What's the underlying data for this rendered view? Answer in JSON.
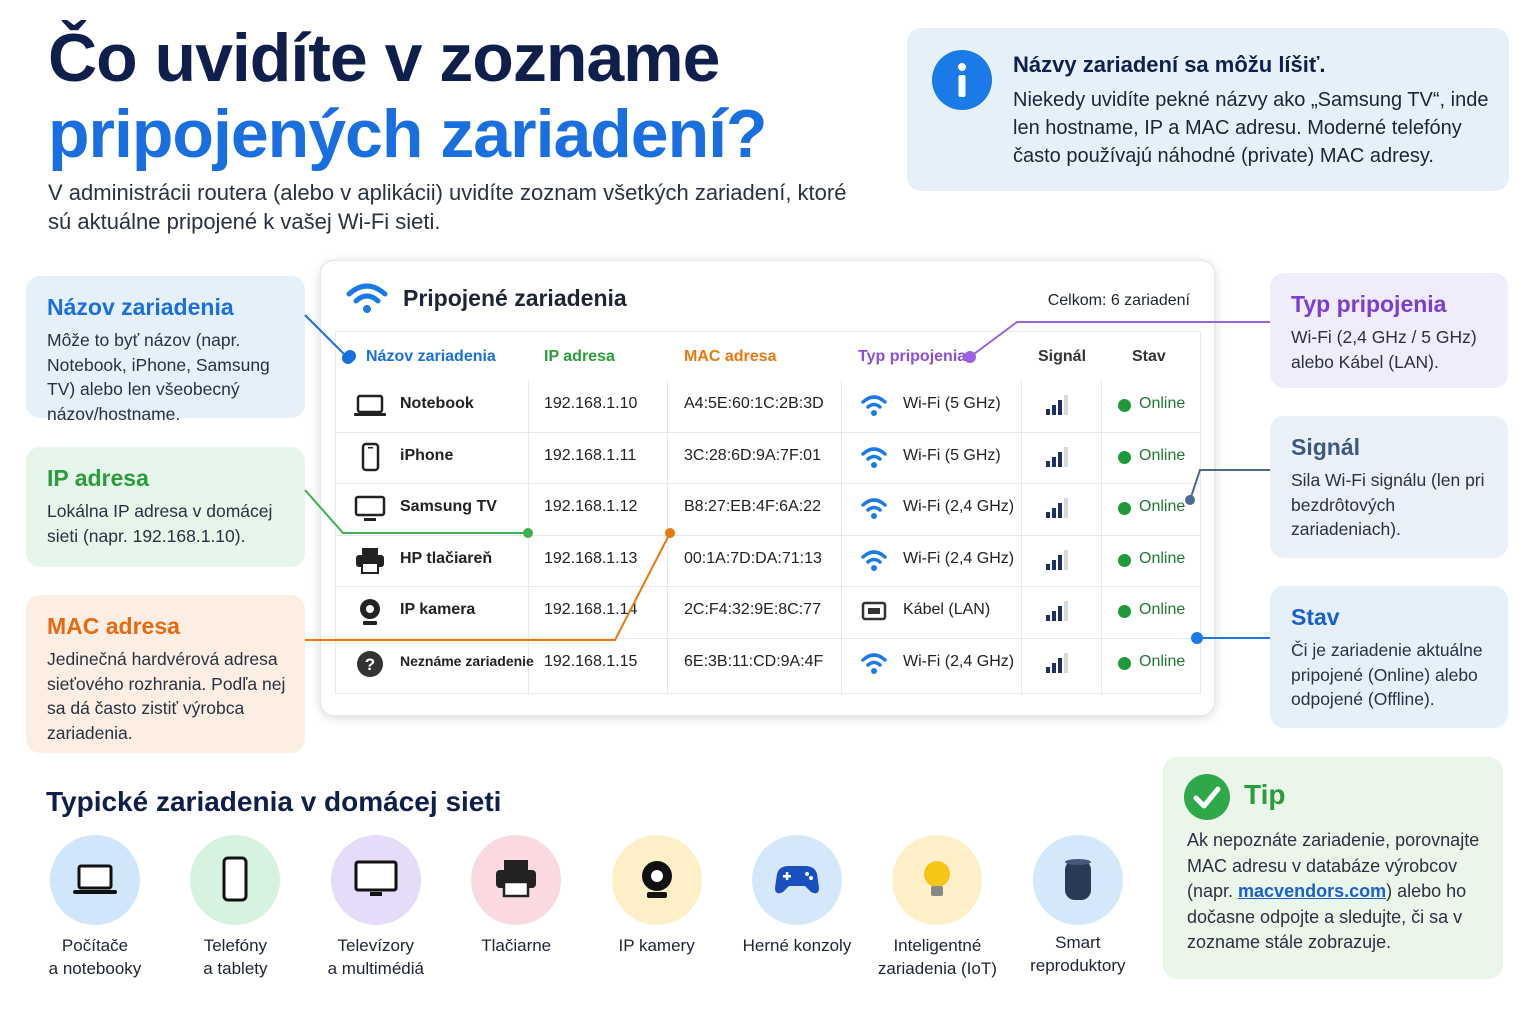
{
  "header": {
    "title_line1": "Čo uvidíte v zozname",
    "title_line2": "pripojených zariadení?",
    "subtitle": "V administrácii routera (alebo v aplikácii) uvidíte zoznam všetkých zariadení, ktoré sú aktuálne pripojené k vašej Wi-Fi sieti."
  },
  "info": {
    "title": "Názvy zariadení sa môžu líšiť.",
    "text": "Niekedy uvidíte pekné názvy ako „Samsung TV“, inde len hostname, IP a MAC adresu. Moderné telefóny často používajú náhodné (private) MAC adresy."
  },
  "table": {
    "title": "Pripojené zariadenia",
    "total": "Celkom: 6 zariadení",
    "columns": [
      "Názov zariadenia",
      "IP adresa",
      "MAC adresa",
      "Typ pripojenia",
      "Signál",
      "Stav"
    ],
    "rows": [
      [
        "Notebook",
        "192.168.1.10",
        "A4:5E:60:1C:2B:3D",
        "Wi-Fi (5 GHz)",
        "Online"
      ],
      [
        "iPhone",
        "192.168.1.11",
        "3C:28:6D:9A:7F:01",
        "Wi-Fi (5 GHz)",
        "Online"
      ],
      [
        "Samsung TV",
        "192.168.1.12",
        "B8:27:EB:4F:6A:22",
        "Wi-Fi (2,4 GHz)",
        "Online"
      ],
      [
        "HP tlačiareň",
        "192.168.1.13",
        "00:1A:7D:DA:71:13",
        "Wi-Fi (2,4 GHz)",
        "Online"
      ],
      [
        "IP kamera",
        "192.168.1.14",
        "2C:F4:32:9E:8C:77",
        "Kábel (LAN)",
        "Online"
      ],
      [
        "Neznáme zariadenie",
        "192.168.1.15",
        "6E:3B:11:CD:9A:4F",
        "Wi-Fi (2,4 GHz)",
        "Online"
      ]
    ]
  },
  "callouts": {
    "left": [
      {
        "title": "Názov zariadenia",
        "text": "Môže to byť názov (napr. Notebook, iPhone, Samsung TV) alebo len všeobecný názov/hostname."
      },
      {
        "title": "IP adresa",
        "text": "Lokálna IP adresa v domácej sieti (napr. 192.168.1.10)."
      },
      {
        "title": "MAC adresa",
        "text": "Jedinečná hardvérová adresa sieťového rozhrania. Podľa nej sa dá často zistiť výrobca zariadenia."
      }
    ],
    "right": [
      {
        "title": "Typ pripojenia",
        "text": "Wi-Fi (2,4 GHz / 5 GHz) alebo Kábel (LAN)."
      },
      {
        "title": "Signál",
        "text": "Sila Wi-Fi signálu (len pri bezdrôtových zariadeniach)."
      },
      {
        "title": "Stav",
        "text": "Či je zariadenie aktuálne pripojené (Online) alebo odpojené (Offline)."
      }
    ]
  },
  "typical": {
    "title": "Typické zariadenia v domácej sieti",
    "items": [
      [
        "Počítače",
        "a notebooky"
      ],
      [
        "Telefóny",
        "a tablety"
      ],
      [
        "Televízory",
        "a multimédiá"
      ],
      [
        "Tlačiarne"
      ],
      [
        "IP kamery"
      ],
      [
        "Herné konzoly"
      ],
      [
        "Inteligentné",
        "zariadenia (IoT)"
      ],
      [
        "Smart",
        "reproduktory"
      ]
    ]
  },
  "tip": {
    "title": "Tip",
    "text_1": "Ak nepoznáte zariadenie, porovnajte MAC adresu v databáze výrobcov (napr. ",
    "link": "macvendors.com",
    "text_2": ") alebo ho dočasne odpojte a sledujte, či sa v zozname stále zobrazuje."
  }
}
